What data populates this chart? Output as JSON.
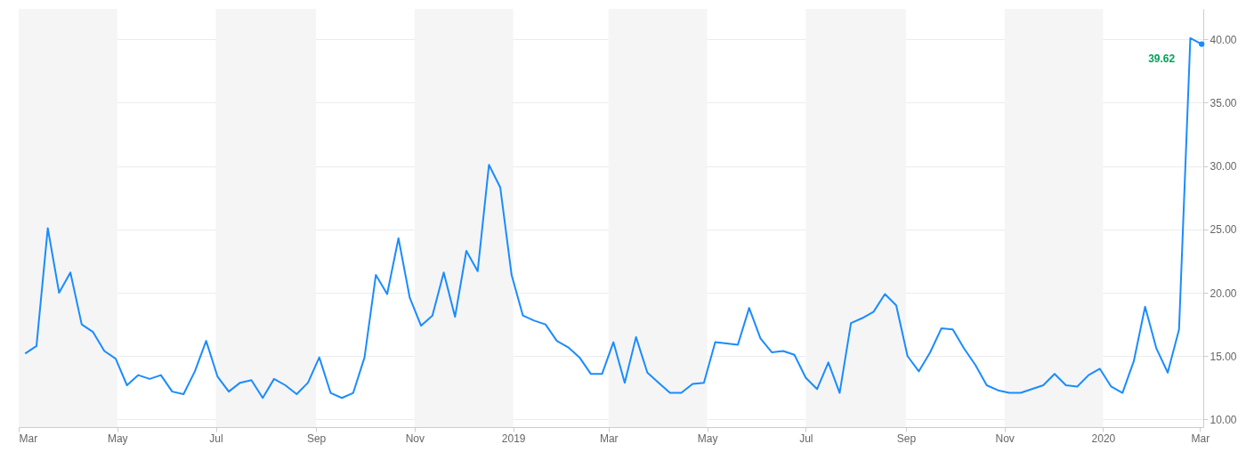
{
  "chart_data": {
    "type": "line",
    "x": [
      "2018-03-05",
      "2018-03-12",
      "2018-03-19",
      "2018-03-26",
      "2018-04-02",
      "2018-04-09",
      "2018-04-16",
      "2018-04-23",
      "2018-04-30",
      "2018-05-07",
      "2018-05-14",
      "2018-05-21",
      "2018-05-28",
      "2018-06-04",
      "2018-06-11",
      "2018-06-18",
      "2018-06-25",
      "2018-07-02",
      "2018-07-09",
      "2018-07-16",
      "2018-07-23",
      "2018-07-30",
      "2018-08-06",
      "2018-08-13",
      "2018-08-20",
      "2018-08-27",
      "2018-09-03",
      "2018-09-10",
      "2018-09-17",
      "2018-09-24",
      "2018-10-01",
      "2018-10-08",
      "2018-10-15",
      "2018-10-22",
      "2018-10-29",
      "2018-11-05",
      "2018-11-12",
      "2018-11-19",
      "2018-11-26",
      "2018-12-03",
      "2018-12-10",
      "2018-12-17",
      "2018-12-24",
      "2018-12-31",
      "2019-01-07",
      "2019-01-14",
      "2019-01-21",
      "2019-01-28",
      "2019-02-04",
      "2019-02-11",
      "2019-02-18",
      "2019-02-25",
      "2019-03-04",
      "2019-03-11",
      "2019-03-18",
      "2019-03-25",
      "2019-04-01",
      "2019-04-08",
      "2019-04-15",
      "2019-04-22",
      "2019-04-29",
      "2019-05-06",
      "2019-05-13",
      "2019-05-20",
      "2019-05-27",
      "2019-06-03",
      "2019-06-10",
      "2019-06-17",
      "2019-06-24",
      "2019-07-01",
      "2019-07-08",
      "2019-07-15",
      "2019-07-22",
      "2019-07-29",
      "2019-08-05",
      "2019-08-12",
      "2019-08-19",
      "2019-08-26",
      "2019-09-02",
      "2019-09-09",
      "2019-09-16",
      "2019-09-23",
      "2019-09-30",
      "2019-10-07",
      "2019-10-14",
      "2019-10-21",
      "2019-10-28",
      "2019-11-04",
      "2019-11-11",
      "2019-11-18",
      "2019-11-25",
      "2019-12-02",
      "2019-12-09",
      "2019-12-16",
      "2019-12-23",
      "2019-12-30",
      "2020-01-06",
      "2020-01-13",
      "2020-01-20",
      "2020-01-27",
      "2020-02-03",
      "2020-02-10",
      "2020-02-17",
      "2020-02-24",
      "2020-03-02"
    ],
    "series": [
      {
        "color": "#1a8cff",
        "values": [
          15.2,
          15.8,
          25.1,
          20.0,
          21.6,
          17.5,
          16.9,
          15.4,
          14.8,
          12.7,
          13.5,
          13.2,
          13.5,
          12.2,
          12.0,
          13.8,
          16.2,
          13.4,
          12.2,
          12.9,
          13.1,
          11.7,
          13.2,
          12.7,
          12.0,
          12.9,
          14.9,
          12.1,
          11.7,
          12.1,
          14.9,
          21.4,
          19.9,
          24.3,
          19.6,
          17.4,
          18.2,
          21.6,
          18.1,
          23.3,
          21.7,
          30.1,
          28.3,
          21.4,
          18.2,
          17.8,
          17.5,
          16.2,
          15.7,
          14.9,
          13.6,
          13.6,
          16.1,
          12.9,
          16.5,
          13.7,
          12.9,
          12.1,
          12.1,
          12.8,
          12.9,
          16.1,
          16.0,
          15.9,
          18.8,
          16.4,
          15.3,
          15.4,
          15.1,
          13.3,
          12.4,
          14.5,
          12.1,
          17.6,
          18.0,
          18.5,
          19.9,
          19.0,
          15.0,
          13.8,
          15.3,
          17.2,
          17.1,
          15.6,
          14.3,
          12.7,
          12.3,
          12.1,
          12.1,
          12.4,
          12.7,
          13.6,
          12.7,
          12.6,
          13.5,
          14.0,
          12.6,
          12.1,
          14.6,
          18.9,
          15.6,
          13.7,
          17.1,
          40.1,
          39.62
        ]
      }
    ],
    "xlim": [
      "2018-03-01",
      "2020-03-03"
    ],
    "xticks": [
      {
        "value": "2018-03-01",
        "label": "Mar"
      },
      {
        "value": "2018-05-01",
        "label": "May"
      },
      {
        "value": "2018-07-01",
        "label": "Jul"
      },
      {
        "value": "2018-09-01",
        "label": "Sep"
      },
      {
        "value": "2018-11-01",
        "label": "Nov"
      },
      {
        "value": "2019-01-01",
        "label": "2019"
      },
      {
        "value": "2019-03-01",
        "label": "Mar"
      },
      {
        "value": "2019-05-01",
        "label": "May"
      },
      {
        "value": "2019-07-01",
        "label": "Jul"
      },
      {
        "value": "2019-09-01",
        "label": "Sep"
      },
      {
        "value": "2019-11-01",
        "label": "Nov"
      },
      {
        "value": "2020-01-01",
        "label": "2020"
      },
      {
        "value": "2020-03-01",
        "label": "Mar"
      }
    ],
    "ylim": [
      9.4,
      42.4
    ],
    "yticks": [
      {
        "value": 10,
        "label": "10.00"
      },
      {
        "value": 15,
        "label": "15.00"
      },
      {
        "value": 20,
        "label": "20.00"
      },
      {
        "value": 25,
        "label": "25.00"
      },
      {
        "value": 30,
        "label": "30.00"
      },
      {
        "value": 35,
        "label": "35.00"
      },
      {
        "value": 40,
        "label": "40.00"
      }
    ],
    "bands": [
      {
        "axis": "x",
        "from": "2018-03-01",
        "to": "2018-05-01",
        "color": "#f5f5f5"
      },
      {
        "axis": "x",
        "from": "2018-07-01",
        "to": "2018-09-01",
        "color": "#f5f5f5"
      },
      {
        "axis": "x",
        "from": "2018-11-01",
        "to": "2019-01-01",
        "color": "#f5f5f5"
      },
      {
        "axis": "x",
        "from": "2019-03-01",
        "to": "2019-05-01",
        "color": "#f5f5f5"
      },
      {
        "axis": "x",
        "from": "2019-07-01",
        "to": "2019-09-01",
        "color": "#f5f5f5"
      },
      {
        "axis": "x",
        "from": "2019-11-01",
        "to": "2020-01-01",
        "color": "#f5f5f5"
      }
    ],
    "annotations": [
      {
        "text": "39.62",
        "x": "2020-03-02",
        "y": 39.62
      }
    ],
    "grid": "y",
    "marker": "none",
    "line_style": "solid"
  }
}
